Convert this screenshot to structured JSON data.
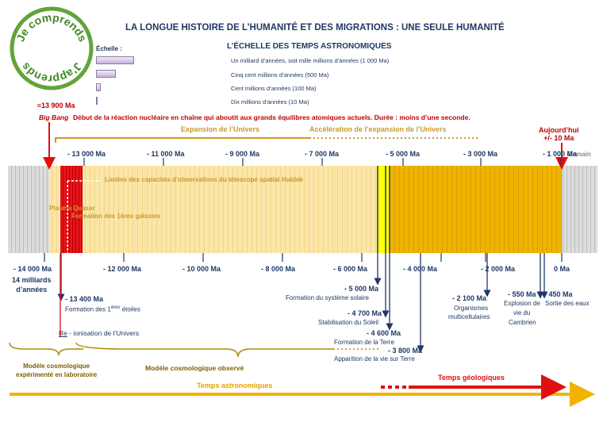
{
  "logo": {
    "top_text": "Je comprends",
    "bottom_text": "J'apprends"
  },
  "header": {
    "title": "LA LONGUE HISTOIRE DE L’HUMANITÉ ET DES MIGRATIONS : UNE SEULE HUMANITÉ",
    "subtitle": "L’ÉCHELLE DES TEMPS ASTRONOMIQUES"
  },
  "scale": {
    "label": "Échelle :",
    "items": [
      {
        "text": "Un milliard d’années, soit mille millions d’années (1 000 Ma)",
        "value_ma": 1000
      },
      {
        "text": "Cinq cent millions d’années (500 Ma)",
        "value_ma": 500
      },
      {
        "text": "Cent millions d’années (100 Ma)",
        "value_ma": 100
      },
      {
        "text": "Dix millions d’années (10 Ma)",
        "value_ma": 10
      }
    ]
  },
  "big_bang": {
    "ma": "≈13 900 Ma",
    "name": "Big Bang",
    "desc": "Début de la réaction nucléaire en chaîne qui aboutit aux grands équilibres atomiques actuels. Durée : moins d’une seconde."
  },
  "today": {
    "line1": "Aujourd’hui",
    "line2": "+/- 10 Ma"
  },
  "demain": "Demain",
  "phases": {
    "expansion": "Expansion de l’Univers",
    "acceleration": "Accélération de l’expansion de l’Univers"
  },
  "ticks_top": [
    "- 13 000 Ma",
    "- 11 000 Ma",
    "- 9 000 Ma",
    "- 7 000 Ma",
    "- 5 000 Ma",
    "- 3 000 Ma",
    "- 1 000 Ma"
  ],
  "ticks_bottom": [
    "- 14 000 Ma",
    "- 12 000 Ma",
    "- 10 000 Ma",
    "- 8 000 Ma",
    "- 6 000 Ma",
    "- 4 000 Ma",
    "- 2 000 Ma",
    "0 Ma"
  ],
  "start_sub": {
    "line1": "14 milliards",
    "line2": "d’années"
  },
  "inbar": {
    "hubble_prefix": "Limites des capacités d’observations du télescope spatial ",
    "hubble_name": "Hubble",
    "plasma": "Plasma",
    "quasar": "Quasar",
    "galaxies": "Formation des 1ères  galaxies"
  },
  "events": {
    "e13400": {
      "ma": "- 13 400 Ma",
      "txt_a": "Formation des 1",
      "sup": "ères",
      "txt_b": " étoiles"
    },
    "reion": {
      "a": "Re",
      "b": " - ionisation de l’Univers"
    },
    "e5000": {
      "ma": "- 5 000 Ma",
      "txt": "Formation du système solaire"
    },
    "e4700": {
      "ma": "- 4 700 Ma",
      "txt": "Stabilisation du Soleil"
    },
    "e4600": {
      "ma": "- 4 600 Ma",
      "txt": "Formation de la Terre"
    },
    "e3800": {
      "ma": "- 3 800 Ma",
      "txt": "Apparition de la vie sur Terre"
    },
    "e2100": {
      "ma": "- 2 100 Ma",
      "txt1": "Organismes",
      "txt2": "multicellulaires"
    },
    "e550": {
      "ma": "- 550 Ma",
      "txt1": "Explosion de",
      "txt2": "vie du",
      "txt3": "Cambrien"
    },
    "e450": {
      "ma": "- 450 Ma",
      "txt": "Sortie des eaux"
    }
  },
  "models": {
    "lab_line1": "Modèle cosmologique",
    "lab_line2": "expérimenté en laboratoire",
    "observed": "Modèle cosmologique observé"
  },
  "bottom": {
    "astro": "Temps astronomiques",
    "geo": "Temps géologiques"
  },
  "colors": {
    "navy": "#1f3864",
    "red": "#c00000",
    "gold": "#c89a2a",
    "pale": "#fbe6a8",
    "orange": "#f0b400",
    "yellow": "#ffff00",
    "grey": "#d0d0d0"
  }
}
